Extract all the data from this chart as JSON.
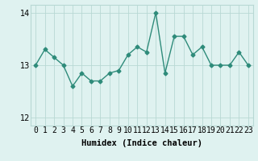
{
  "x": [
    0,
    1,
    2,
    3,
    4,
    5,
    6,
    7,
    8,
    9,
    10,
    11,
    12,
    13,
    14,
    15,
    16,
    17,
    18,
    19,
    20,
    21,
    22,
    23
  ],
  "y": [
    13.0,
    13.3,
    13.15,
    13.0,
    12.6,
    12.85,
    12.7,
    12.7,
    12.85,
    12.9,
    13.2,
    13.35,
    13.25,
    14.0,
    12.85,
    13.55,
    13.55,
    13.2,
    13.35,
    13.0,
    13.0,
    13.0,
    13.25,
    13.0
  ],
  "line_color": "#2e8b7a",
  "marker": "D",
  "marker_size": 2.5,
  "line_width": 1.0,
  "bg_color": "#dff2f0",
  "grid_color": "#b8d8d4",
  "xlabel": "Humidex (Indice chaleur)",
  "ylim": [
    11.85,
    14.15
  ],
  "yticks": [
    12,
    13,
    14
  ],
  "xlim": [
    -0.5,
    23.5
  ],
  "xlabel_fontsize": 7.5,
  "tick_fontsize": 7,
  "ytick_fontsize": 7
}
